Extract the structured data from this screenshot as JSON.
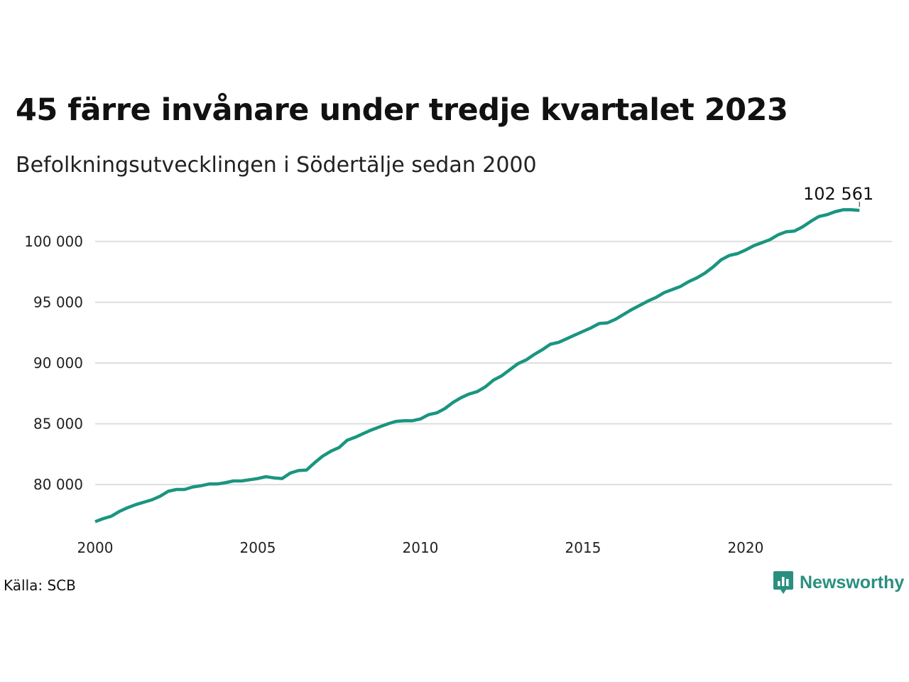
{
  "header": {
    "title": "45 färre invånare under tredje kvartalet 2023",
    "subtitle": "Befolkningsutvecklingen i Södertälje sedan 2000"
  },
  "footer": {
    "source": "Källa: SCB",
    "brand": "Newsworthy",
    "brand_icon": "chart-bubble-icon"
  },
  "colors": {
    "line": "#1a9580",
    "grid": "#dedede",
    "brand": "#2a8f80"
  },
  "chart_data": {
    "type": "line",
    "title": "45 färre invånare under tredje kvartalet 2023",
    "subtitle": "Befolkningsutvecklingen i Södertälje sedan 2000",
    "xlabel": "",
    "ylabel": "",
    "x_ticks": [
      "2000",
      "2005",
      "2010",
      "2015",
      "2020"
    ],
    "y_ticks": [
      "80 000",
      "85 000",
      "90 000",
      "95 000",
      "100 000"
    ],
    "y_tick_values": [
      80000,
      85000,
      90000,
      95000,
      100000
    ],
    "xlim": [
      2000.0,
      2024.5
    ],
    "ylim": [
      76500,
      103500
    ],
    "grid": "horizontal",
    "end_label": "102 561",
    "series": [
      {
        "x": [
          2000.0,
          2000.25,
          2000.5,
          2000.75,
          2001.0,
          2001.25,
          2001.5,
          2001.75,
          2002.0,
          2002.25,
          2002.5,
          2002.75,
          2003.0,
          2003.25,
          2003.5,
          2003.75,
          2004.0,
          2004.25,
          2004.5,
          2004.75,
          2005.0,
          2005.25,
          2005.5,
          2005.75,
          2006.0,
          2006.25,
          2006.5,
          2006.75,
          2007.0,
          2007.25,
          2007.5,
          2007.75,
          2008.0,
          2008.25,
          2008.5,
          2008.75,
          2009.0,
          2009.25,
          2009.5,
          2009.75,
          2010.0,
          2010.25,
          2010.5,
          2010.75,
          2011.0,
          2011.25,
          2011.5,
          2011.75,
          2012.0,
          2012.25,
          2012.5,
          2012.75,
          2013.0,
          2013.25,
          2013.5,
          2013.75,
          2014.0,
          2014.25,
          2014.5,
          2014.75,
          2015.0,
          2015.25,
          2015.5,
          2015.75,
          2016.0,
          2016.25,
          2016.5,
          2016.75,
          2017.0,
          2017.25,
          2017.5,
          2017.75,
          2018.0,
          2018.25,
          2018.5,
          2018.75,
          2019.0,
          2019.25,
          2019.5,
          2019.75,
          2020.0,
          2020.25,
          2020.5,
          2020.75,
          2021.0,
          2021.25,
          2021.5,
          2021.75,
          2022.0,
          2022.25,
          2022.5,
          2022.75,
          2023.0,
          2023.25,
          2023.5
        ],
        "values": [
          76950,
          77200,
          77400,
          77800,
          78100,
          78350,
          78550,
          78750,
          79050,
          79450,
          79600,
          79600,
          79800,
          79900,
          80050,
          80050,
          80150,
          80300,
          80300,
          80400,
          80500,
          80650,
          80550,
          80500,
          80950,
          81150,
          81200,
          81800,
          82350,
          82750,
          83050,
          83650,
          83900,
          84200,
          84500,
          84750,
          85000,
          85200,
          85250,
          85250,
          85400,
          85750,
          85900,
          86250,
          86750,
          87150,
          87450,
          87650,
          88050,
          88600,
          88950,
          89450,
          89950,
          90250,
          90700,
          91100,
          91550,
          91700,
          92000,
          92300,
          92600,
          92900,
          93250,
          93300,
          93600,
          94000,
          94400,
          94750,
          95100,
          95400,
          95800,
          96050,
          96300,
          96700,
          97000,
          97400,
          97900,
          98500,
          98850,
          99000,
          99300,
          99650,
          99900,
          100150,
          100550,
          100800,
          100850,
          101200,
          101650,
          102050,
          102200,
          102450,
          102606,
          102606,
          102561
        ]
      }
    ]
  }
}
